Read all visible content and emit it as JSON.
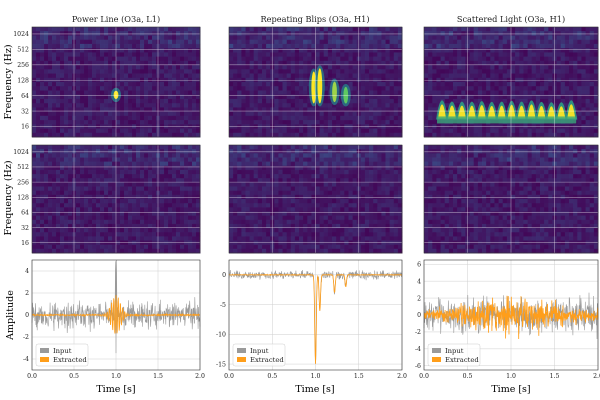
{
  "figure": {
    "columns": [
      {
        "title": "Power Line (O3a, L1)"
      },
      {
        "title": "Repeating Blips (O3a, H1)"
      },
      {
        "title": "Scattered Light (O3a, H1)"
      }
    ],
    "spec_ylabel": "Frequency (Hz)",
    "amp_ylabel": "Amplitude",
    "xlabel": "Time [s]"
  },
  "chart_data": [
    {
      "type": "heatmap",
      "panel": "top-left",
      "title": "Power Line (O3a, L1)",
      "x_range": [
        0,
        2
      ],
      "y_scale": "log2",
      "y_ticks": [
        "16",
        "32",
        "64",
        "128",
        "256",
        "512",
        "1024"
      ],
      "ylabel": "Frequency (Hz)",
      "grid": true,
      "colormap": "viridis",
      "features": [
        {
          "t": 1.0,
          "f_low": 55,
          "f_high": 80,
          "intensity": 1.0
        }
      ]
    },
    {
      "type": "heatmap",
      "panel": "top-center",
      "title": "Repeating Blips (O3a, H1)",
      "x_range": [
        0,
        2
      ],
      "y_scale": "log2",
      "y_ticks": [
        "16",
        "32",
        "64",
        "128",
        "256",
        "512",
        "1024"
      ],
      "grid": true,
      "colormap": "viridis",
      "features": [
        {
          "t": 0.98,
          "f_low": 45,
          "f_high": 190,
          "intensity": 1.0
        },
        {
          "t": 1.05,
          "f_low": 45,
          "f_high": 220,
          "intensity": 1.0
        },
        {
          "t": 1.22,
          "f_low": 48,
          "f_high": 120,
          "intensity": 0.85
        },
        {
          "t": 1.35,
          "f_low": 45,
          "f_high": 95,
          "intensity": 0.75
        }
      ]
    },
    {
      "type": "heatmap",
      "panel": "top-right",
      "title": "Scattered Light (O3a, H1)",
      "x_range": [
        0,
        2
      ],
      "y_scale": "log2",
      "y_ticks": [
        "16",
        "32",
        "64",
        "128",
        "256",
        "512",
        "1024"
      ],
      "grid": true,
      "colormap": "viridis",
      "features": [
        {
          "t_start": 0.15,
          "t_end": 1.75,
          "f_low": 22,
          "f_high": 60,
          "intensity": 1.0,
          "type": "arches"
        }
      ]
    },
    {
      "type": "heatmap",
      "panel": "middle-left",
      "x_range": [
        0,
        2
      ],
      "y_scale": "log2",
      "y_ticks": [
        "16",
        "32",
        "64",
        "128",
        "256",
        "512",
        "1024"
      ],
      "ylabel": "Frequency (Hz)",
      "grid": true,
      "colormap": "viridis",
      "features": []
    },
    {
      "type": "heatmap",
      "panel": "middle-center",
      "x_range": [
        0,
        2
      ],
      "y_scale": "log2",
      "y_ticks": [
        "16",
        "32",
        "64",
        "128",
        "256",
        "512",
        "1024"
      ],
      "grid": true,
      "colormap": "viridis",
      "features": []
    },
    {
      "type": "heatmap",
      "panel": "middle-right",
      "x_range": [
        0,
        2
      ],
      "y_scale": "log2",
      "y_ticks": [
        "16",
        "32",
        "64",
        "128",
        "256",
        "512",
        "1024"
      ],
      "grid": true,
      "colormap": "viridis",
      "features": []
    },
    {
      "type": "line",
      "panel": "bottom-left",
      "xlabel": "Time [s]",
      "ylabel": "Amplitude",
      "xlim": [
        0.0,
        2.0
      ],
      "ylim": [
        -5,
        5
      ],
      "grid": true,
      "x_ticks": [
        "0.0",
        "0.5",
        "1.0",
        "1.5",
        "2.0"
      ],
      "y_ticks": [
        "-4",
        "-2",
        "0",
        "2",
        "4"
      ],
      "legend": "bottom-left",
      "series": [
        {
          "name": "Input",
          "color": "#9a9a9a",
          "noise_amplitude": 2.0,
          "extra_events": [
            {
              "t": 1.0,
              "amp": 4.5
            }
          ]
        },
        {
          "name": "Extracted",
          "color": "#ff9e1a",
          "noise_amplitude": 0.12,
          "events": [
            {
              "t": 1.0,
              "amp": 1.8,
              "width": 0.08
            }
          ]
        }
      ]
    },
    {
      "type": "line",
      "panel": "bottom-center",
      "xlabel": "Time [s]",
      "xlim": [
        0.0,
        2.0
      ],
      "ylim": [
        -16,
        2.5
      ],
      "grid": true,
      "x_ticks": [
        "0.0",
        "0.5",
        "1.0",
        "1.5",
        "2.0"
      ],
      "y_ticks": [
        "-15",
        "-10",
        "-5",
        "0"
      ],
      "legend": "bottom-left",
      "series": [
        {
          "name": "Input",
          "color": "#9a9a9a",
          "noise_amplitude": 1.2,
          "events": [
            {
              "t": 1.0,
              "amp": -15
            },
            {
              "t": 1.05,
              "amp": -6
            },
            {
              "t": 1.22,
              "amp": -3
            },
            {
              "t": 1.35,
              "amp": -2
            }
          ]
        },
        {
          "name": "Extracted",
          "color": "#ff9e1a",
          "noise_amplitude": 0.08,
          "events": [
            {
              "t": 1.0,
              "amp": -15
            },
            {
              "t": 1.05,
              "amp": -6
            },
            {
              "t": 1.22,
              "amp": -3
            },
            {
              "t": 1.35,
              "amp": -2
            }
          ]
        }
      ]
    },
    {
      "type": "line",
      "panel": "bottom-right",
      "xlabel": "Time [s]",
      "xlim": [
        0.0,
        2.0
      ],
      "ylim": [
        -6.5,
        6.5
      ],
      "grid": true,
      "x_ticks": [
        "0.0",
        "0.5",
        "1.0",
        "1.5",
        "2.0"
      ],
      "y_ticks": [
        "-6",
        "-4",
        "-2",
        "0",
        "2",
        "4",
        "6"
      ],
      "legend": "bottom-left",
      "series": [
        {
          "name": "Input",
          "color": "#9a9a9a",
          "noise_amplitude": 3.5
        },
        {
          "name": "Extracted",
          "color": "#ff9e1a",
          "noise_amplitude": 1.0,
          "envelope": {
            "t_start": 0.0,
            "t_end": 2.0,
            "peak_t": 1.0,
            "peak": 2.8
          }
        }
      ]
    }
  ]
}
